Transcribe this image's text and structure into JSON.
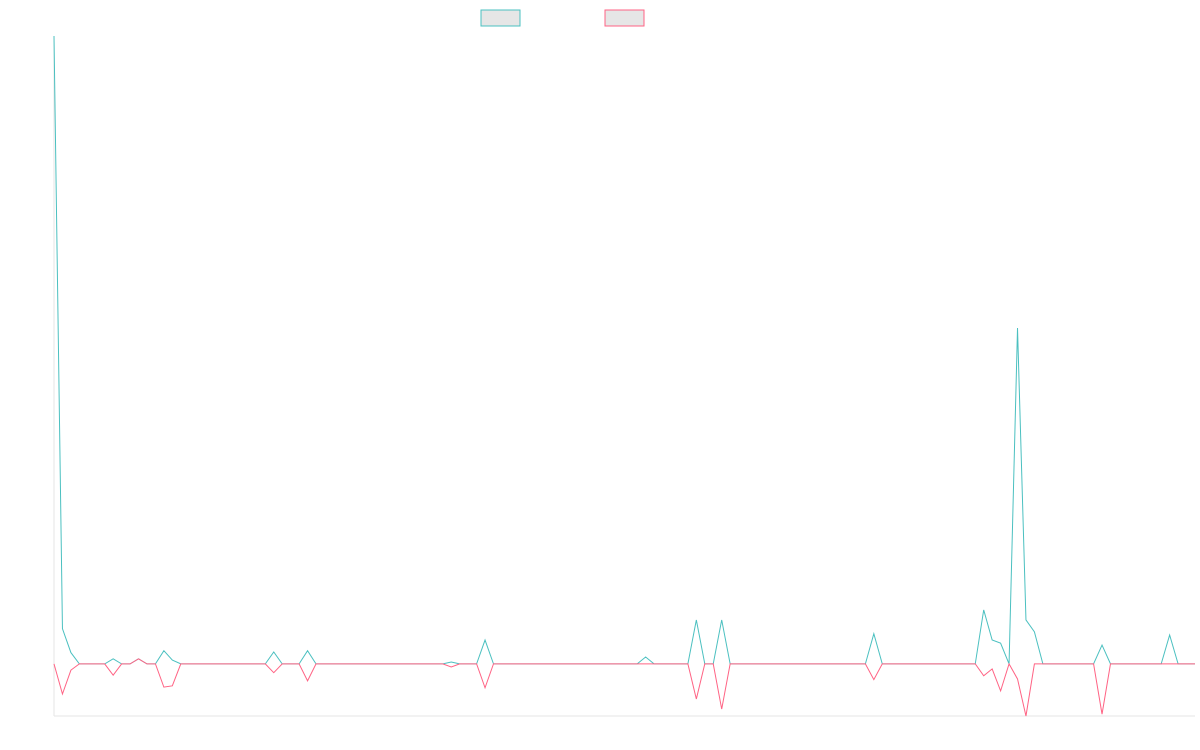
{
  "chart_data": {
    "type": "line",
    "categories": [
      null,
      null,
      null,
      null,
      null,
      null,
      null,
      null,
      null,
      null,
      null,
      null,
      null,
      null,
      null,
      null,
      null,
      null,
      null,
      null,
      null,
      null,
      null,
      null,
      null,
      null,
      null,
      null,
      null,
      null,
      null,
      null,
      null,
      null,
      null,
      null,
      null,
      null,
      null,
      null,
      null,
      null,
      null,
      null,
      null,
      null,
      null,
      null,
      null,
      null,
      null,
      null,
      null,
      null,
      null,
      null,
      null,
      null,
      null,
      null,
      null,
      null,
      null,
      null,
      null,
      null,
      null,
      null,
      null,
      null,
      null,
      null,
      null,
      null,
      null,
      null,
      null,
      null,
      null,
      null,
      null,
      null,
      null,
      null,
      null,
      null,
      null,
      null,
      null,
      null,
      null,
      null,
      null,
      null,
      null,
      null,
      null,
      null,
      null,
      null,
      null,
      null,
      null,
      null,
      null,
      null,
      null,
      null,
      null,
      null,
      null,
      null,
      null,
      null,
      null,
      null,
      null,
      null,
      null,
      null,
      null,
      null,
      null,
      null,
      null,
      null,
      null,
      null,
      null,
      null,
      null,
      null,
      null,
      null,
      null,
      null
    ],
    "series": [
      {
        "color": "#4bc0c0",
        "values": [
          100,
          5.6,
          1.8,
          0,
          0,
          0,
          0,
          0.8,
          0,
          0,
          0.8,
          0,
          0,
          2.1,
          0.6,
          0,
          0,
          0,
          0,
          0,
          0,
          0,
          0,
          0,
          0,
          0,
          1.9,
          0,
          0,
          0,
          2.1,
          0,
          0,
          0,
          0,
          0,
          0,
          0,
          0,
          0,
          0,
          0,
          0,
          0,
          0,
          0,
          0,
          0.3,
          0,
          0,
          0,
          3.8,
          0,
          0,
          0,
          0,
          0,
          0,
          0,
          0,
          0,
          0,
          0,
          0,
          0,
          0,
          0,
          0,
          0,
          0,
          1.1,
          0,
          0,
          0,
          0,
          0,
          7,
          0,
          0,
          7,
          0,
          0,
          0,
          0,
          0,
          0,
          0,
          0,
          0,
          0,
          0,
          0,
          0,
          0,
          0,
          0,
          0,
          4.8,
          0,
          0,
          0,
          0,
          0,
          0,
          0,
          0,
          0,
          0,
          0,
          0,
          8.6,
          3.8,
          3.3,
          0,
          53.5,
          7,
          5.1,
          0,
          0,
          0,
          0,
          0,
          0,
          0,
          3,
          0,
          0,
          0,
          0,
          0,
          0,
          0,
          4.6,
          0,
          0,
          0
        ]
      },
      {
        "color": "#ff6384",
        "values": [
          0,
          -4.8,
          -1,
          0,
          0,
          0,
          0,
          -1.8,
          0,
          0,
          0.8,
          0,
          0,
          -3.7,
          -3.5,
          0,
          0,
          0,
          0,
          0,
          0,
          0,
          0,
          0,
          0,
          0,
          -1.4,
          0,
          0,
          0,
          -2.7,
          0,
          0,
          0,
          0,
          0,
          0,
          0,
          0,
          0,
          0,
          0,
          0,
          0,
          0,
          0,
          0,
          -0.5,
          0,
          0,
          0,
          -3.8,
          0,
          0,
          0,
          0,
          0,
          0,
          0,
          0,
          0,
          0,
          0,
          0,
          0,
          0,
          0,
          0,
          0,
          0,
          0,
          0,
          0,
          0,
          0,
          0,
          -5.6,
          0,
          0,
          -7.2,
          0,
          0,
          0,
          0,
          0,
          0,
          0,
          0,
          0,
          0,
          0,
          0,
          0,
          0,
          0,
          0,
          0,
          -2.5,
          0,
          0,
          0,
          0,
          0,
          0,
          0,
          0,
          0,
          0,
          0,
          0,
          -1.9,
          -0.8,
          -4.3,
          0,
          -2.4,
          -8.3,
          0,
          0,
          0,
          0,
          0,
          0,
          0,
          0,
          -8,
          0,
          0,
          0,
          0,
          0,
          0,
          0,
          0,
          0,
          0,
          0
        ]
      }
    ],
    "ylim": [
      -8.3,
      100
    ]
  }
}
